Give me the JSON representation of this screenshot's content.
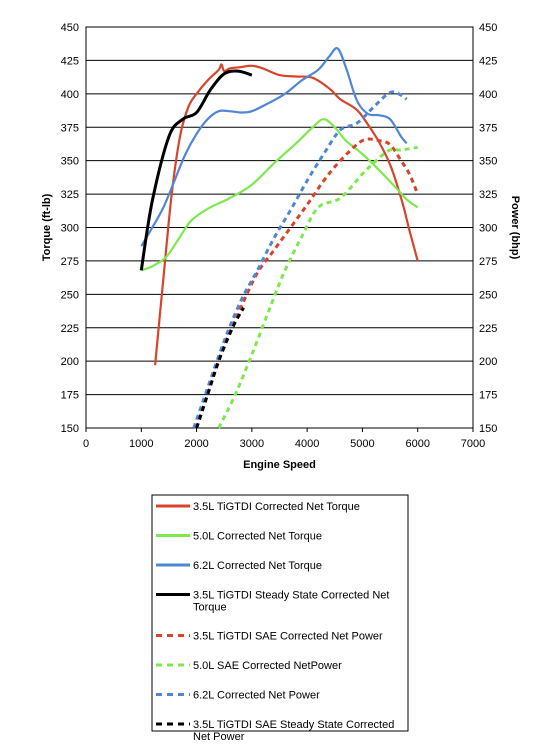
{
  "chart_data": {
    "type": "line",
    "xlabel": "Engine Speed",
    "ylabel_left": "Torque (ft-lb)",
    "ylabel_right": "Power (bhp)",
    "xlim": [
      0,
      7000
    ],
    "x_ticks": [
      0,
      1000,
      2000,
      3000,
      4000,
      5000,
      6000,
      7000
    ],
    "ylim_left": [
      150,
      450
    ],
    "ylim_right": [
      150,
      450
    ],
    "y_ticks": [
      150,
      175,
      200,
      225,
      250,
      275,
      300,
      325,
      350,
      375,
      400,
      425,
      450
    ],
    "grid": "horizontal",
    "legend_position": "bottom",
    "series": [
      {
        "name": "3.5L TiGTDI Corrected Net Torque",
        "color": "#d7442b",
        "style": "solid",
        "axis": "left",
        "legend_lines": 1,
        "points": [
          [
            1250,
            197
          ],
          [
            1400,
            262
          ],
          [
            1550,
            325
          ],
          [
            1700,
            368
          ],
          [
            1850,
            390
          ],
          [
            2000,
            400
          ],
          [
            2200,
            410
          ],
          [
            2400,
            418
          ],
          [
            2450,
            422
          ],
          [
            2500,
            417
          ],
          [
            2600,
            419
          ],
          [
            2800,
            420
          ],
          [
            3000,
            421
          ],
          [
            3200,
            419
          ],
          [
            3500,
            414
          ],
          [
            3800,
            413
          ],
          [
            4100,
            412
          ],
          [
            4400,
            404
          ],
          [
            4600,
            396
          ],
          [
            4900,
            388
          ],
          [
            5100,
            377
          ],
          [
            5300,
            364
          ],
          [
            5500,
            347
          ],
          [
            5700,
            322
          ],
          [
            5850,
            298
          ],
          [
            6000,
            275
          ]
        ]
      },
      {
        "name": "5.0L Corrected Net Torque",
        "color": "#7ee84f",
        "style": "solid",
        "axis": "left",
        "legend_lines": 1,
        "points": [
          [
            1000,
            268
          ],
          [
            1200,
            271
          ],
          [
            1450,
            278
          ],
          [
            1700,
            293
          ],
          [
            1900,
            305
          ],
          [
            2200,
            314
          ],
          [
            2600,
            322
          ],
          [
            3000,
            332
          ],
          [
            3400,
            348
          ],
          [
            3800,
            363
          ],
          [
            4100,
            375
          ],
          [
            4300,
            381
          ],
          [
            4500,
            375
          ],
          [
            4700,
            365
          ],
          [
            5000,
            355
          ],
          [
            5300,
            343
          ],
          [
            5600,
            330
          ],
          [
            5800,
            321
          ],
          [
            6000,
            315
          ]
        ]
      },
      {
        "name": "6.2L Corrected Net Torque",
        "color": "#4f87d6",
        "style": "solid",
        "axis": "left",
        "legend_lines": 1,
        "points": [
          [
            1000,
            286
          ],
          [
            1200,
            300
          ],
          [
            1400,
            315
          ],
          [
            1600,
            335
          ],
          [
            1800,
            355
          ],
          [
            2000,
            370
          ],
          [
            2200,
            381
          ],
          [
            2400,
            387
          ],
          [
            2600,
            387
          ],
          [
            2800,
            386
          ],
          [
            3000,
            387
          ],
          [
            3300,
            393
          ],
          [
            3600,
            400
          ],
          [
            3900,
            410
          ],
          [
            4200,
            418
          ],
          [
            4400,
            428
          ],
          [
            4550,
            434
          ],
          [
            4700,
            420
          ],
          [
            4900,
            395
          ],
          [
            5100,
            385
          ],
          [
            5300,
            384
          ],
          [
            5500,
            381
          ],
          [
            5700,
            368
          ],
          [
            5800,
            363
          ]
        ]
      },
      {
        "name": "3.5L TiGTDI Steady State Corrected Net Torque",
        "color": "#000000",
        "style": "solid",
        "axis": "left",
        "legend_lines": 2,
        "points": [
          [
            1000,
            268
          ],
          [
            1200,
            320
          ],
          [
            1500,
            368
          ],
          [
            1750,
            381
          ],
          [
            2000,
            386
          ],
          [
            2250,
            403
          ],
          [
            2500,
            415
          ],
          [
            2750,
            417
          ],
          [
            3000,
            414
          ]
        ]
      },
      {
        "name": "3.5L TiGTDI SAE Corrected Net Power",
        "color": "#d7442b",
        "style": "dashed",
        "axis": "right",
        "legend_lines": 1,
        "points": [
          [
            2000,
            150
          ],
          [
            2200,
            175
          ],
          [
            2500,
            212
          ],
          [
            2800,
            240
          ],
          [
            3100,
            266
          ],
          [
            3400,
            283
          ],
          [
            3700,
            300
          ],
          [
            4000,
            317
          ],
          [
            4300,
            335
          ],
          [
            4600,
            350
          ],
          [
            5000,
            365
          ],
          [
            5300,
            365
          ],
          [
            5500,
            362
          ],
          [
            5700,
            350
          ],
          [
            5850,
            340
          ],
          [
            6000,
            325
          ]
        ]
      },
      {
        "name": "5.0L SAE Corrected NetPower",
        "color": "#7ee84f",
        "style": "dashed",
        "axis": "right",
        "legend_lines": 1,
        "points": [
          [
            2400,
            150
          ],
          [
            2700,
            175
          ],
          [
            3000,
            205
          ],
          [
            3300,
            237
          ],
          [
            3600,
            268
          ],
          [
            3900,
            293
          ],
          [
            4200,
            315
          ],
          [
            4600,
            322
          ],
          [
            5000,
            340
          ],
          [
            5300,
            352
          ],
          [
            5500,
            358
          ],
          [
            5700,
            358
          ],
          [
            6000,
            360
          ]
        ]
      },
      {
        "name": "6.2L Corrected Net Power",
        "color": "#4f87d6",
        "style": "dashed",
        "axis": "right",
        "legend_lines": 1,
        "points": [
          [
            1950,
            150
          ],
          [
            2200,
            180
          ],
          [
            2500,
            215
          ],
          [
            2800,
            245
          ],
          [
            3100,
            268
          ],
          [
            3400,
            292
          ],
          [
            3700,
            313
          ],
          [
            4000,
            335
          ],
          [
            4300,
            355
          ],
          [
            4600,
            373
          ],
          [
            4900,
            378
          ],
          [
            5200,
            390
          ],
          [
            5500,
            401
          ],
          [
            5700,
            399
          ],
          [
            5800,
            396
          ]
        ]
      },
      {
        "name": "3.5L TiGTDI SAE Steady State Corrected Net Power",
        "color": "#000000",
        "style": "dashed",
        "axis": "right",
        "legend_lines": 2,
        "points": [
          [
            2000,
            150
          ],
          [
            2200,
            175
          ],
          [
            2400,
            200
          ],
          [
            2650,
            225
          ],
          [
            2850,
            240
          ]
        ]
      }
    ]
  }
}
